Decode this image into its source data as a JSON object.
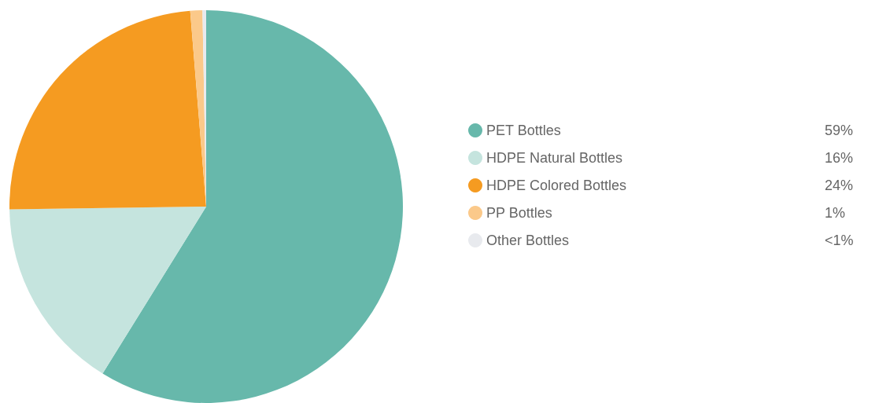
{
  "chart_data": {
    "type": "pie",
    "categories": [
      "PET Bottles",
      "HDPE Natural Bottles",
      "HDPE Colored Bottles",
      "PP Bottles",
      "Other Bottles"
    ],
    "values": [
      59,
      16,
      24,
      1,
      0.3
    ],
    "value_labels": [
      "59%",
      "16%",
      "24%",
      "1%",
      "<1%"
    ],
    "colors": [
      "#67b8ab",
      "#c5e4de",
      "#f59b21",
      "#fbc98a",
      "#e8eaee"
    ],
    "legend": "right"
  }
}
